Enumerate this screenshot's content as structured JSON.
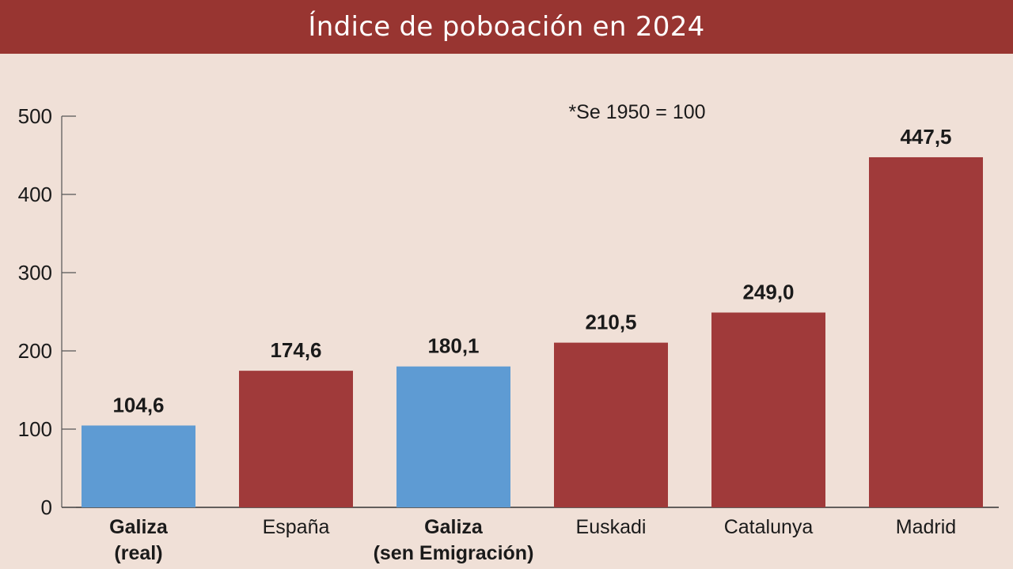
{
  "title": "Índice de poboación en 2024",
  "note": "*Se 1950 = 100",
  "colors": {
    "header": "#983531",
    "background": "#f0e0d7",
    "galiza": "#5e9bd3",
    "other": "#a03a3a"
  },
  "chart_data": {
    "type": "bar",
    "title": "Índice de poboación en 2024",
    "categories": [
      {
        "lines": [
          "Galiza",
          "(real)"
        ],
        "bold": true
      },
      {
        "lines": [
          "España"
        ],
        "bold": false
      },
      {
        "lines": [
          "Galiza",
          "(sen Emigración)"
        ],
        "bold": true
      },
      {
        "lines": [
          "Euskadi"
        ],
        "bold": false
      },
      {
        "lines": [
          "Catalunya"
        ],
        "bold": false
      },
      {
        "lines": [
          "Madrid"
        ],
        "bold": false
      }
    ],
    "values": [
      104.6,
      174.6,
      180.1,
      210.5,
      249.0,
      447.5
    ],
    "value_labels": [
      "104,6",
      "174,6",
      "180,1",
      "210,5",
      "249,0",
      "447,5"
    ],
    "highlight": [
      true,
      false,
      true,
      false,
      false,
      false
    ],
    "ylim": [
      0,
      500
    ],
    "yticks": [
      0,
      100,
      200,
      300,
      400,
      500
    ],
    "xlabel": "",
    "ylabel": "",
    "grid": false
  }
}
